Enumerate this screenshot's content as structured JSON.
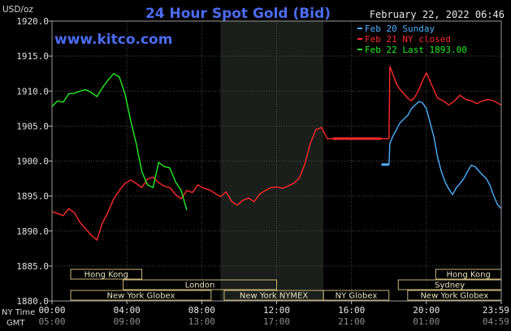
{
  "chart_data": {
    "type": "line",
    "title": "24 Hour Spot Gold (Bid)",
    "ylabel": "USD/oz",
    "website": "www.kitco.com",
    "timestamp": "February 22, 2022 06:46",
    "ylim": [
      1880,
      1920
    ],
    "yticks": [
      "1920.0",
      "1915.0",
      "1910.0",
      "1905.0",
      "1900.0",
      "1895.0",
      "1890.0",
      "1885.0",
      "1880.0"
    ],
    "xlim": [
      0,
      24
    ],
    "x_row_labels": {
      "ny": "NY Time",
      "gmt": "GMT"
    },
    "xticks_ny": [
      "00:00",
      "04:00",
      "08:00",
      "12:00",
      "16:00",
      "20:00",
      "23:59"
    ],
    "xticks_gmt": [
      "05:00",
      "09:00",
      "13:00",
      "17:00",
      "21:00",
      "01:00",
      "04:59"
    ],
    "shaded_range_hours": [
      9,
      14.5
    ],
    "legend": [
      {
        "name": "Feb 20 Sunday",
        "color": "#4fb0ff"
      },
      {
        "name": "Feb 21 NY closed",
        "color": "#ff2a2a"
      },
      {
        "name": "Feb 22 Last 1893.00",
        "color": "#22ee22"
      }
    ],
    "sessions": [
      {
        "label": "Hong Kong",
        "row": 0,
        "segments": [
          [
            1,
            4.8
          ],
          [
            20.5,
            24
          ]
        ]
      },
      {
        "label": "Sydney",
        "row": 1,
        "segments": [
          [
            18.5,
            24
          ]
        ]
      },
      {
        "label": "London",
        "row": 1,
        "segments": [
          [
            3.8,
            12
          ]
        ]
      },
      {
        "label": "New York Globex",
        "row": 2,
        "segments": [
          [
            1,
            8.5
          ],
          [
            19,
            24
          ]
        ]
      },
      {
        "label": "New York NYMEX",
        "row": 2,
        "segments": [
          [
            9.2,
            14.5
          ]
        ]
      },
      {
        "label": "NY Globex",
        "row": 2,
        "segments": [
          [
            14.5,
            18
          ]
        ]
      }
    ],
    "series": [
      {
        "name": "Feb 20 Sunday",
        "color": "#4fb0ff",
        "x": [
          17.6,
          18.0,
          18.05,
          18.2,
          18.4,
          18.6,
          18.8,
          19.0,
          19.2,
          19.4,
          19.6,
          19.8,
          20.0,
          20.2,
          20.4,
          20.6,
          20.8,
          21.0,
          21.2,
          21.4,
          21.6,
          21.8,
          22.0,
          22.2,
          22.4,
          22.6,
          22.8,
          23.0,
          23.2,
          23.4,
          23.6,
          23.8,
          23.99
        ],
        "y": [
          1899.5,
          1899.5,
          1902.5,
          1903.5,
          1904.5,
          1905.5,
          1906,
          1906.5,
          1907.5,
          1908,
          1908.5,
          1908.3,
          1907.5,
          1905.5,
          1903.5,
          1900.5,
          1898.5,
          1897,
          1896,
          1895.2,
          1896.2,
          1896.8,
          1897.5,
          1898.5,
          1899.4,
          1899.2,
          1898.6,
          1898,
          1897.5,
          1896.5,
          1895,
          1893.8,
          1893.2
        ]
      },
      {
        "name": "Feb 21 NY closed",
        "color": "#ff2a2a",
        "x": [
          0,
          0.3,
          0.6,
          0.9,
          1.2,
          1.5,
          1.8,
          2.1,
          2.4,
          2.7,
          3.0,
          3.3,
          3.6,
          3.9,
          4.2,
          4.5,
          4.8,
          5.1,
          5.4,
          5.7,
          6.0,
          6.3,
          6.6,
          6.9,
          7.2,
          7.5,
          7.8,
          8.1,
          8.4,
          8.7,
          9.0,
          9.3,
          9.6,
          9.9,
          10.2,
          10.5,
          10.8,
          11.1,
          11.4,
          11.7,
          12.0,
          12.3,
          12.6,
          12.9,
          13.2,
          13.5,
          13.8,
          14.1,
          14.4,
          14.7,
          15.0,
          17.6,
          18.0,
          18.05,
          18.2,
          18.4,
          18.6,
          18.8,
          19.0,
          19.2,
          19.4,
          19.6,
          19.8,
          20.0,
          20.3,
          20.6,
          20.9,
          21.2,
          21.5,
          21.8,
          22.1,
          22.4,
          22.7,
          23.0,
          23.3,
          23.6,
          23.99
        ],
        "y": [
          1892.8,
          1892.5,
          1892.2,
          1893.2,
          1892.6,
          1891.2,
          1890.3,
          1889.4,
          1888.7,
          1891.2,
          1892.7,
          1894.6,
          1895.8,
          1896.8,
          1897.3,
          1896.8,
          1896.2,
          1897.4,
          1897.7,
          1896.9,
          1896.4,
          1896.2,
          1895.2,
          1894.6,
          1895.8,
          1895.5,
          1896.6,
          1896.1,
          1895.9,
          1895.4,
          1894.9,
          1895.6,
          1894.2,
          1893.7,
          1894.4,
          1894.7,
          1894.2,
          1895.3,
          1895.8,
          1896.2,
          1896.3,
          1896.1,
          1896.4,
          1896.8,
          1897.5,
          1899.5,
          1902.5,
          1904.5,
          1904.8,
          1903.2,
          1903.2,
          1903.2,
          1903.2,
          1913.5,
          1912.5,
          1911.0,
          1910.2,
          1909.6,
          1909.0,
          1908.6,
          1909.2,
          1910.2,
          1911.5,
          1912.6,
          1910.8,
          1909.0,
          1908.6,
          1908.0,
          1908.6,
          1909.4,
          1908.8,
          1908.6,
          1908.2,
          1908.6,
          1908.8,
          1908.6,
          1908.0
        ]
      },
      {
        "name": "Feb 22 Last 1893.00",
        "color": "#22ee22",
        "x": [
          0,
          0.3,
          0.6,
          0.9,
          1.2,
          1.5,
          1.8,
          2.1,
          2.4,
          2.7,
          3.0,
          3.3,
          3.6,
          3.9,
          4.2,
          4.5,
          4.8,
          5.1,
          5.4,
          5.7,
          6.0,
          6.3,
          6.6,
          6.9,
          7.2
        ],
        "y": [
          1907.8,
          1908.6,
          1908.4,
          1909.6,
          1909.7,
          1910.0,
          1910.2,
          1909.8,
          1909.2,
          1910.5,
          1911.6,
          1912.5,
          1912.0,
          1909.6,
          1905.8,
          1902.5,
          1898.5,
          1896.6,
          1896.2,
          1899.8,
          1899.2,
          1899.0,
          1897.0,
          1895.8,
          1893.0
        ]
      }
    ]
  }
}
